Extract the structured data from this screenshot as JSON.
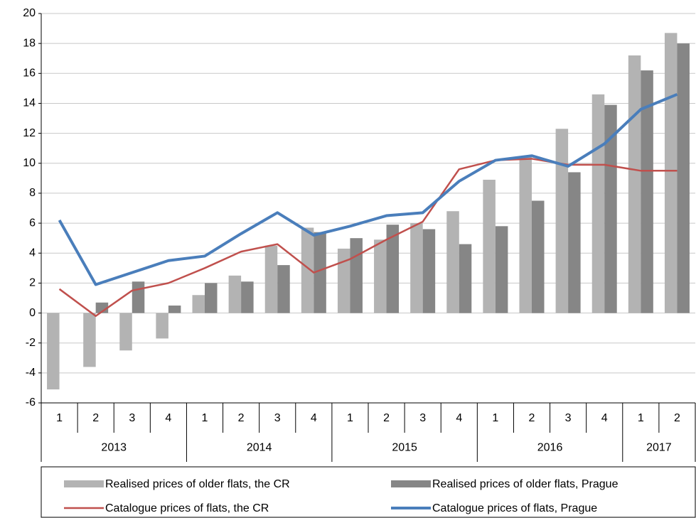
{
  "chart_data": {
    "type": "bar_line",
    "category_groups": [
      {
        "label": "2013",
        "categories": [
          "1",
          "2",
          "3",
          "4"
        ]
      },
      {
        "label": "2014",
        "categories": [
          "1",
          "2",
          "3",
          "4"
        ]
      },
      {
        "label": "2015",
        "categories": [
          "1",
          "2",
          "3",
          "4"
        ]
      },
      {
        "label": "2016",
        "categories": [
          "1",
          "2",
          "3",
          "4"
        ]
      },
      {
        "label": "2017",
        "categories": [
          "1",
          "2"
        ]
      }
    ],
    "series": [
      {
        "name": "Realised prices of older flats, the CR",
        "type": "bar",
        "color": "#b3b3b3",
        "values": [
          -5.1,
          -3.6,
          -2.5,
          -1.7,
          1.2,
          2.5,
          4.5,
          5.7,
          4.3,
          4.9,
          6.0,
          6.8,
          8.9,
          10.4,
          12.3,
          14.6,
          17.2,
          18.7
        ]
      },
      {
        "name": "Realised prices of older flats, Prague",
        "type": "bar",
        "color": "#868686",
        "values": [
          null,
          0.7,
          2.1,
          0.5,
          2.0,
          2.1,
          3.2,
          5.4,
          5.0,
          5.9,
          5.6,
          4.6,
          5.8,
          7.5,
          9.4,
          13.9,
          16.2,
          18.0
        ]
      },
      {
        "name": "Catalogue prices of flats, the CR",
        "type": "line",
        "color": "#c0504d",
        "values": [
          1.6,
          -0.2,
          1.5,
          2.0,
          3.0,
          4.1,
          4.6,
          2.7,
          3.6,
          4.9,
          6.1,
          9.6,
          10.2,
          10.3,
          9.9,
          9.9,
          9.5,
          9.5
        ]
      },
      {
        "name": "Catalogue prices of flats, Prague",
        "type": "line",
        "color": "#4a7ebb",
        "values": [
          6.2,
          1.9,
          2.7,
          3.5,
          3.8,
          5.3,
          6.7,
          5.2,
          5.8,
          6.5,
          6.7,
          8.8,
          10.2,
          10.5,
          9.8,
          11.3,
          13.6,
          14.6
        ]
      }
    ],
    "ylim": [
      -6,
      20
    ],
    "yticks": [
      -6,
      -4,
      -2,
      0,
      2,
      4,
      6,
      8,
      10,
      12,
      14,
      16,
      18,
      20
    ],
    "grid": true,
    "legend": "bottom"
  }
}
